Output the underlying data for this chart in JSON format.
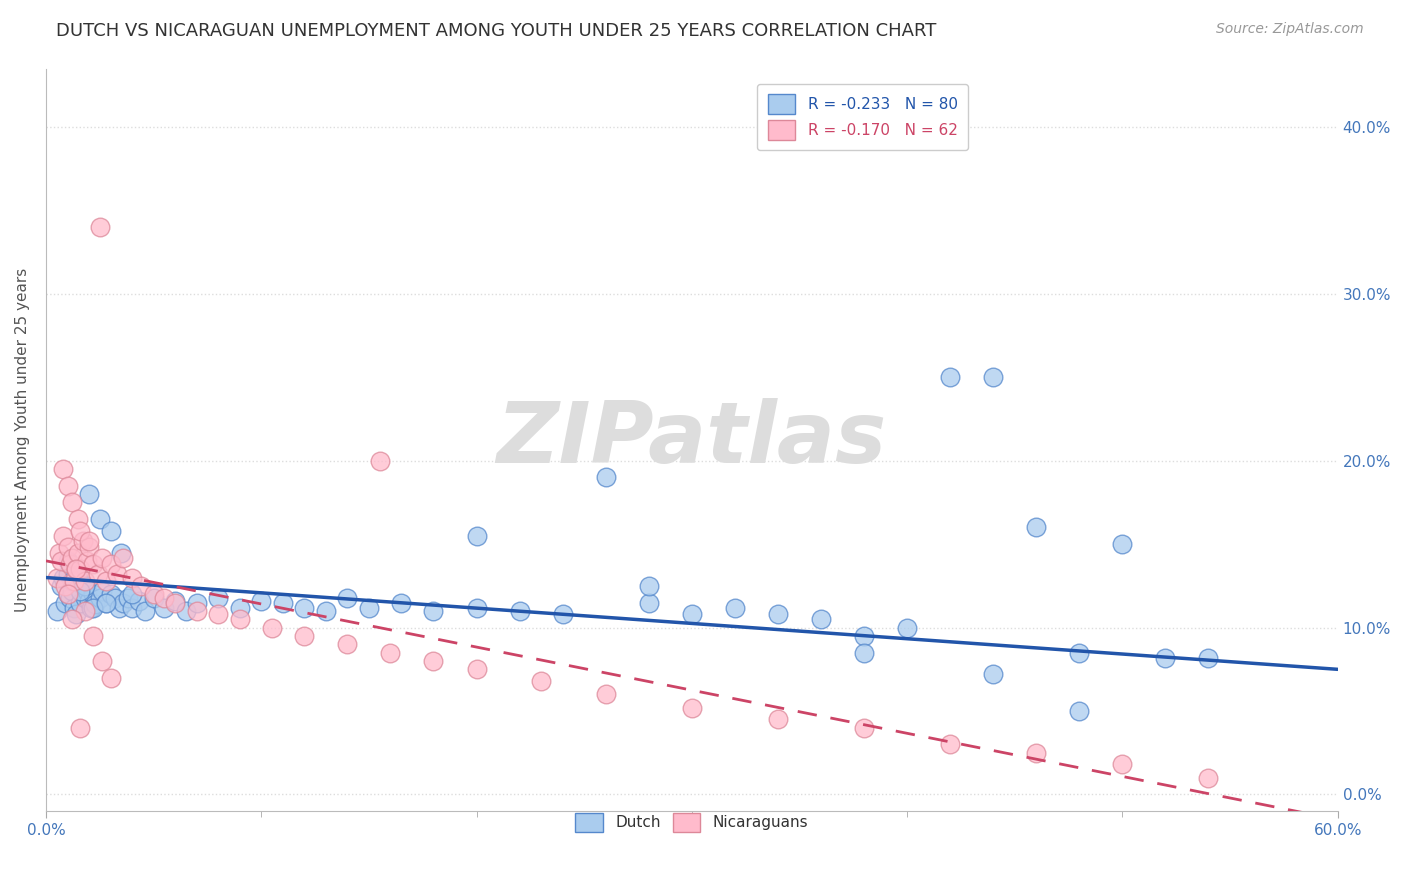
{
  "title": "DUTCH VS NICARAGUAN UNEMPLOYMENT AMONG YOUTH UNDER 25 YEARS CORRELATION CHART",
  "source": "Source: ZipAtlas.com",
  "ylabel": "Unemployment Among Youth under 25 years",
  "dutch_label": "Dutch",
  "nicaraguan_label": "Nicaraguans",
  "dutch_R": "-0.233",
  "dutch_N": "80",
  "nicaraguan_R": "-0.170",
  "nicaraguan_N": "62",
  "dutch_color": "#aaccee",
  "dutch_edge_color": "#5588cc",
  "dutch_line_color": "#2255aa",
  "nicaraguan_color": "#ffbbcc",
  "nicaraguan_edge_color": "#dd8899",
  "nicaraguan_line_color": "#cc4466",
  "background_color": "#ffffff",
  "grid_color": "#dddddd",
  "watermark": "ZIPatlas",
  "title_fontsize": 13,
  "source_fontsize": 10,
  "axis_label_fontsize": 11,
  "tick_fontsize": 11,
  "legend_fontsize": 11,
  "xlim": [
    0.0,
    0.6
  ],
  "ylim": [
    -0.01,
    0.435
  ],
  "xticks": [
    0.0,
    0.6
  ],
  "xtick_labels": [
    "0.0%",
    "60.0%"
  ],
  "yticks_right": [
    0.0,
    0.1,
    0.2,
    0.3,
    0.4
  ],
  "ytick_labels_right": [
    "0.0%",
    "10.0%",
    "20.0%",
    "30.0%",
    "40.0%"
  ],
  "dutch_trend_x": [
    0.0,
    0.6
  ],
  "dutch_trend_y": [
    0.13,
    0.075
  ],
  "nicaraguan_trend_x": [
    0.0,
    0.6
  ],
  "nicaraguan_trend_y": [
    0.14,
    -0.015
  ],
  "dutch_scatter_x": [
    0.005,
    0.007,
    0.008,
    0.009,
    0.01,
    0.01,
    0.011,
    0.012,
    0.013,
    0.014,
    0.015,
    0.016,
    0.017,
    0.018,
    0.019,
    0.02,
    0.021,
    0.022,
    0.023,
    0.025,
    0.026,
    0.028,
    0.03,
    0.032,
    0.034,
    0.036,
    0.038,
    0.04,
    0.043,
    0.046,
    0.05,
    0.055,
    0.06,
    0.065,
    0.07,
    0.08,
    0.09,
    0.1,
    0.11,
    0.12,
    0.13,
    0.14,
    0.15,
    0.165,
    0.18,
    0.2,
    0.22,
    0.24,
    0.26,
    0.28,
    0.3,
    0.32,
    0.34,
    0.36,
    0.38,
    0.4,
    0.42,
    0.44,
    0.46,
    0.48,
    0.5,
    0.52,
    0.54,
    0.02,
    0.025,
    0.03,
    0.035,
    0.04,
    0.015,
    0.018,
    0.022,
    0.028,
    0.01,
    0.012,
    0.016,
    0.2,
    0.28,
    0.38,
    0.44,
    0.48
  ],
  "dutch_scatter_y": [
    0.11,
    0.125,
    0.13,
    0.115,
    0.12,
    0.14,
    0.118,
    0.122,
    0.112,
    0.108,
    0.13,
    0.115,
    0.125,
    0.118,
    0.122,
    0.116,
    0.112,
    0.12,
    0.114,
    0.118,
    0.122,
    0.115,
    0.12,
    0.118,
    0.112,
    0.115,
    0.118,
    0.112,
    0.116,
    0.11,
    0.118,
    0.112,
    0.116,
    0.11,
    0.115,
    0.118,
    0.112,
    0.116,
    0.115,
    0.112,
    0.11,
    0.118,
    0.112,
    0.115,
    0.11,
    0.112,
    0.11,
    0.108,
    0.19,
    0.115,
    0.108,
    0.112,
    0.108,
    0.105,
    0.095,
    0.1,
    0.25,
    0.25,
    0.16,
    0.085,
    0.15,
    0.082,
    0.082,
    0.18,
    0.165,
    0.158,
    0.145,
    0.12,
    0.13,
    0.125,
    0.112,
    0.115,
    0.132,
    0.128,
    0.122,
    0.155,
    0.125,
    0.085,
    0.072,
    0.05
  ],
  "nicaraguan_scatter_x": [
    0.005,
    0.006,
    0.007,
    0.008,
    0.009,
    0.01,
    0.011,
    0.012,
    0.013,
    0.014,
    0.015,
    0.016,
    0.017,
    0.018,
    0.019,
    0.02,
    0.022,
    0.024,
    0.026,
    0.028,
    0.03,
    0.033,
    0.036,
    0.04,
    0.044,
    0.05,
    0.055,
    0.06,
    0.07,
    0.08,
    0.09,
    0.105,
    0.12,
    0.14,
    0.16,
    0.18,
    0.2,
    0.23,
    0.26,
    0.3,
    0.34,
    0.38,
    0.42,
    0.46,
    0.5,
    0.54,
    0.008,
    0.01,
    0.012,
    0.015,
    0.018,
    0.022,
    0.026,
    0.03,
    0.016,
    0.02,
    0.014,
    0.01,
    0.012,
    0.155,
    0.025,
    0.016
  ],
  "nicaraguan_scatter_y": [
    0.13,
    0.145,
    0.14,
    0.155,
    0.125,
    0.148,
    0.138,
    0.142,
    0.128,
    0.135,
    0.145,
    0.135,
    0.152,
    0.128,
    0.14,
    0.148,
    0.138,
    0.132,
    0.142,
    0.128,
    0.138,
    0.132,
    0.142,
    0.13,
    0.125,
    0.12,
    0.118,
    0.115,
    0.11,
    0.108,
    0.105,
    0.1,
    0.095,
    0.09,
    0.085,
    0.08,
    0.075,
    0.068,
    0.06,
    0.052,
    0.045,
    0.04,
    0.03,
    0.025,
    0.018,
    0.01,
    0.195,
    0.185,
    0.175,
    0.165,
    0.11,
    0.095,
    0.08,
    0.07,
    0.158,
    0.152,
    0.135,
    0.12,
    0.105,
    0.2,
    0.34,
    0.04
  ]
}
